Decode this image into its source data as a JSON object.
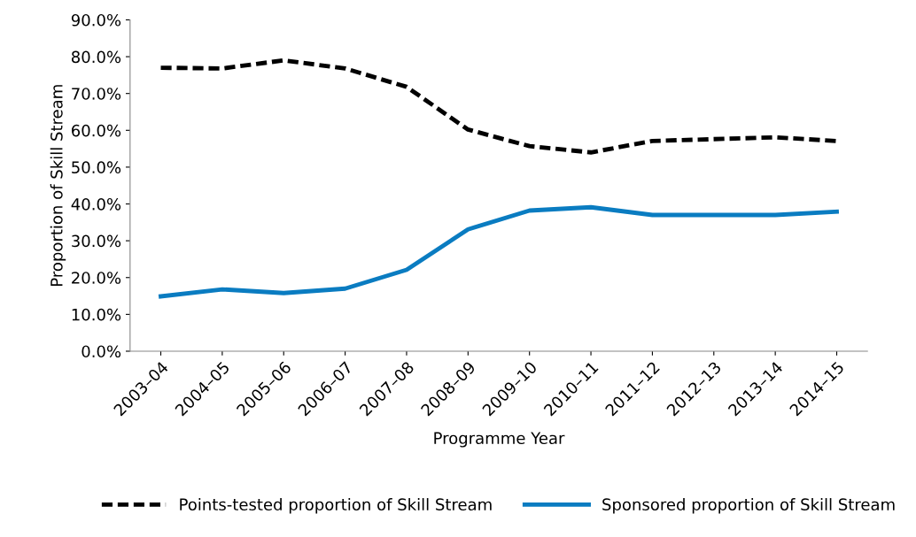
{
  "chart_data": {
    "type": "line",
    "xlabel": "Programme Year",
    "ylabel": "Proportion of Skill Stream",
    "categories": [
      "2003–04",
      "2004–05",
      "2005–06",
      "2006–07",
      "2007–08",
      "2008–09",
      "2009–10",
      "2010–11",
      "2011–12",
      "2012–13",
      "2013–14",
      "2014–15"
    ],
    "series": [
      {
        "name": "Points-tested proportion of Skill Stream",
        "color": "#000000",
        "line_style": "dashed",
        "values": [
          77.0,
          76.8,
          79.0,
          76.8,
          71.8,
          60.2,
          55.7,
          54.0,
          57.1,
          57.6,
          58.1,
          57.1
        ]
      },
      {
        "name": "Sponsored proportion of Skill Stream",
        "color": "#0a7cc1",
        "line_style": "solid",
        "values": [
          14.9,
          16.8,
          15.8,
          17.0,
          22.1,
          33.1,
          38.2,
          39.1,
          37.0,
          37.0,
          37.0,
          37.9
        ]
      }
    ],
    "ylim": [
      0,
      90
    ],
    "yticks": [
      {
        "value": 0,
        "label": "0.0%"
      },
      {
        "value": 10,
        "label": "10.0%"
      },
      {
        "value": 20,
        "label": "20.0%"
      },
      {
        "value": 30,
        "label": "30.0%"
      },
      {
        "value": 40,
        "label": "40.0%"
      },
      {
        "value": 50,
        "label": "50.0%"
      },
      {
        "value": 60,
        "label": "60.0%"
      },
      {
        "value": 70,
        "label": "70.0%"
      },
      {
        "value": 80,
        "label": "80.0%"
      },
      {
        "value": 90,
        "label": "90.0%"
      }
    ],
    "grid": false,
    "legend": "bottom",
    "marker": "none"
  }
}
